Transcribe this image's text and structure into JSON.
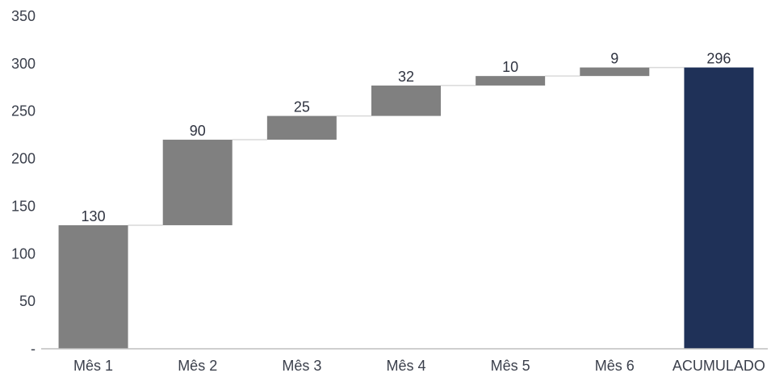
{
  "chart_data": {
    "type": "bar",
    "subtype": "waterfall",
    "title": "",
    "xlabel": "",
    "ylabel": "",
    "categories": [
      "Mês 1",
      "Mês 2",
      "Mês 3",
      "Mês 4",
      "Mês 5",
      "Mês 6",
      "ACUMULADO"
    ],
    "values": [
      130,
      90,
      25,
      32,
      10,
      9,
      296
    ],
    "value_labels": [
      "130",
      "90",
      "25",
      "32",
      "10",
      "9",
      "296"
    ],
    "bar_kinds": [
      "increment",
      "increment",
      "increment",
      "increment",
      "increment",
      "increment",
      "total"
    ],
    "ylim": [
      0,
      350
    ],
    "yticks": [
      0,
      50,
      100,
      150,
      200,
      250,
      300,
      350
    ],
    "ytick_labels": [
      "-",
      "50",
      "100",
      "150",
      "200",
      "250",
      "300",
      "350"
    ],
    "grid": false,
    "legend": "none",
    "colors": {
      "increment": "#808080",
      "total": "#1f3158",
      "connector": "#d9d9d9"
    }
  }
}
